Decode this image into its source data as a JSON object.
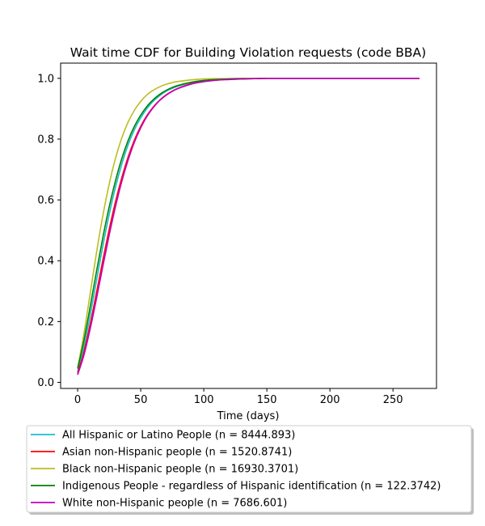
{
  "chart_data": {
    "type": "line",
    "title": "Wait time CDF for Building Violation  requests (code BBA)",
    "xlabel": "Time (days)",
    "ylabel": "",
    "xlim": [
      -13.5,
      284.5
    ],
    "ylim": [
      -0.02,
      1.05
    ],
    "xticks": [
      0,
      50,
      100,
      150,
      200,
      250
    ],
    "yticks": [
      0.0,
      0.2,
      0.4,
      0.6,
      0.8,
      1.0
    ],
    "xtick_labels": [
      "0",
      "50",
      "100",
      "150",
      "200",
      "250"
    ],
    "ytick_labels": [
      "0.0",
      "0.2",
      "0.4",
      "0.6",
      "0.8",
      "1.0"
    ],
    "x": [
      0,
      5,
      10,
      15,
      20,
      25,
      30,
      35,
      40,
      45,
      50,
      55,
      60,
      65,
      70,
      75,
      80,
      90,
      100,
      110,
      120,
      130,
      140,
      150,
      175,
      200,
      225,
      250,
      271
    ],
    "series": [
      {
        "name": "All Hispanic or Latino People (n = 8444.893)",
        "color": "#17becf",
        "values": [
          0.035,
          0.117,
          0.222,
          0.336,
          0.449,
          0.552,
          0.642,
          0.718,
          0.781,
          0.831,
          0.87,
          0.901,
          0.925,
          0.943,
          0.957,
          0.967,
          0.975,
          0.986,
          0.992,
          0.995,
          0.997,
          0.998,
          0.999,
          1.0,
          1.0,
          1.0,
          1.0,
          1.0,
          1.0
        ]
      },
      {
        "name": "Asian non-Hispanic people (n = 1520.8741)",
        "color": "#ff0000",
        "values": [
          0.03,
          0.1,
          0.193,
          0.296,
          0.402,
          0.503,
          0.594,
          0.673,
          0.741,
          0.797,
          0.842,
          0.878,
          0.906,
          0.928,
          0.945,
          0.958,
          0.968,
          0.982,
          0.99,
          0.994,
          0.997,
          0.998,
          0.999,
          1.0,
          1.0,
          1.0,
          1.0,
          1.0,
          1.0
        ]
      },
      {
        "name": "Black non-Hispanic people (n = 16930.3701)",
        "color": "#bcbd22",
        "values": [
          0.048,
          0.16,
          0.294,
          0.428,
          0.549,
          0.652,
          0.737,
          0.804,
          0.856,
          0.895,
          0.924,
          0.946,
          0.961,
          0.972,
          0.98,
          0.986,
          0.99,
          0.995,
          0.998,
          0.999,
          0.999,
          1.0,
          1.0,
          1.0,
          1.0,
          1.0,
          1.0,
          1.0,
          1.0
        ]
      },
      {
        "name": "Indigenous People - regardless of Hispanic identification (n = 122.3742)",
        "color": "#008000",
        "values": [
          0.045,
          0.138,
          0.25,
          0.366,
          0.477,
          0.577,
          0.663,
          0.736,
          0.795,
          0.842,
          0.879,
          0.908,
          0.93,
          0.947,
          0.96,
          0.97,
          0.977,
          0.987,
          0.993,
          0.996,
          0.998,
          0.999,
          0.999,
          1.0,
          1.0,
          1.0,
          1.0,
          1.0,
          1.0
        ]
      },
      {
        "name": "White non-Hispanic people (n = 7686.601)",
        "color": "#c000c0",
        "values": [
          0.025,
          0.09,
          0.177,
          0.277,
          0.382,
          0.484,
          0.578,
          0.661,
          0.731,
          0.79,
          0.837,
          0.875,
          0.904,
          0.927,
          0.944,
          0.957,
          0.967,
          0.981,
          0.989,
          0.994,
          0.996,
          0.998,
          0.999,
          1.0,
          1.0,
          1.0,
          1.0,
          1.0,
          1.0
        ]
      }
    ],
    "legend_position": "bottom-center",
    "grid": false
  }
}
